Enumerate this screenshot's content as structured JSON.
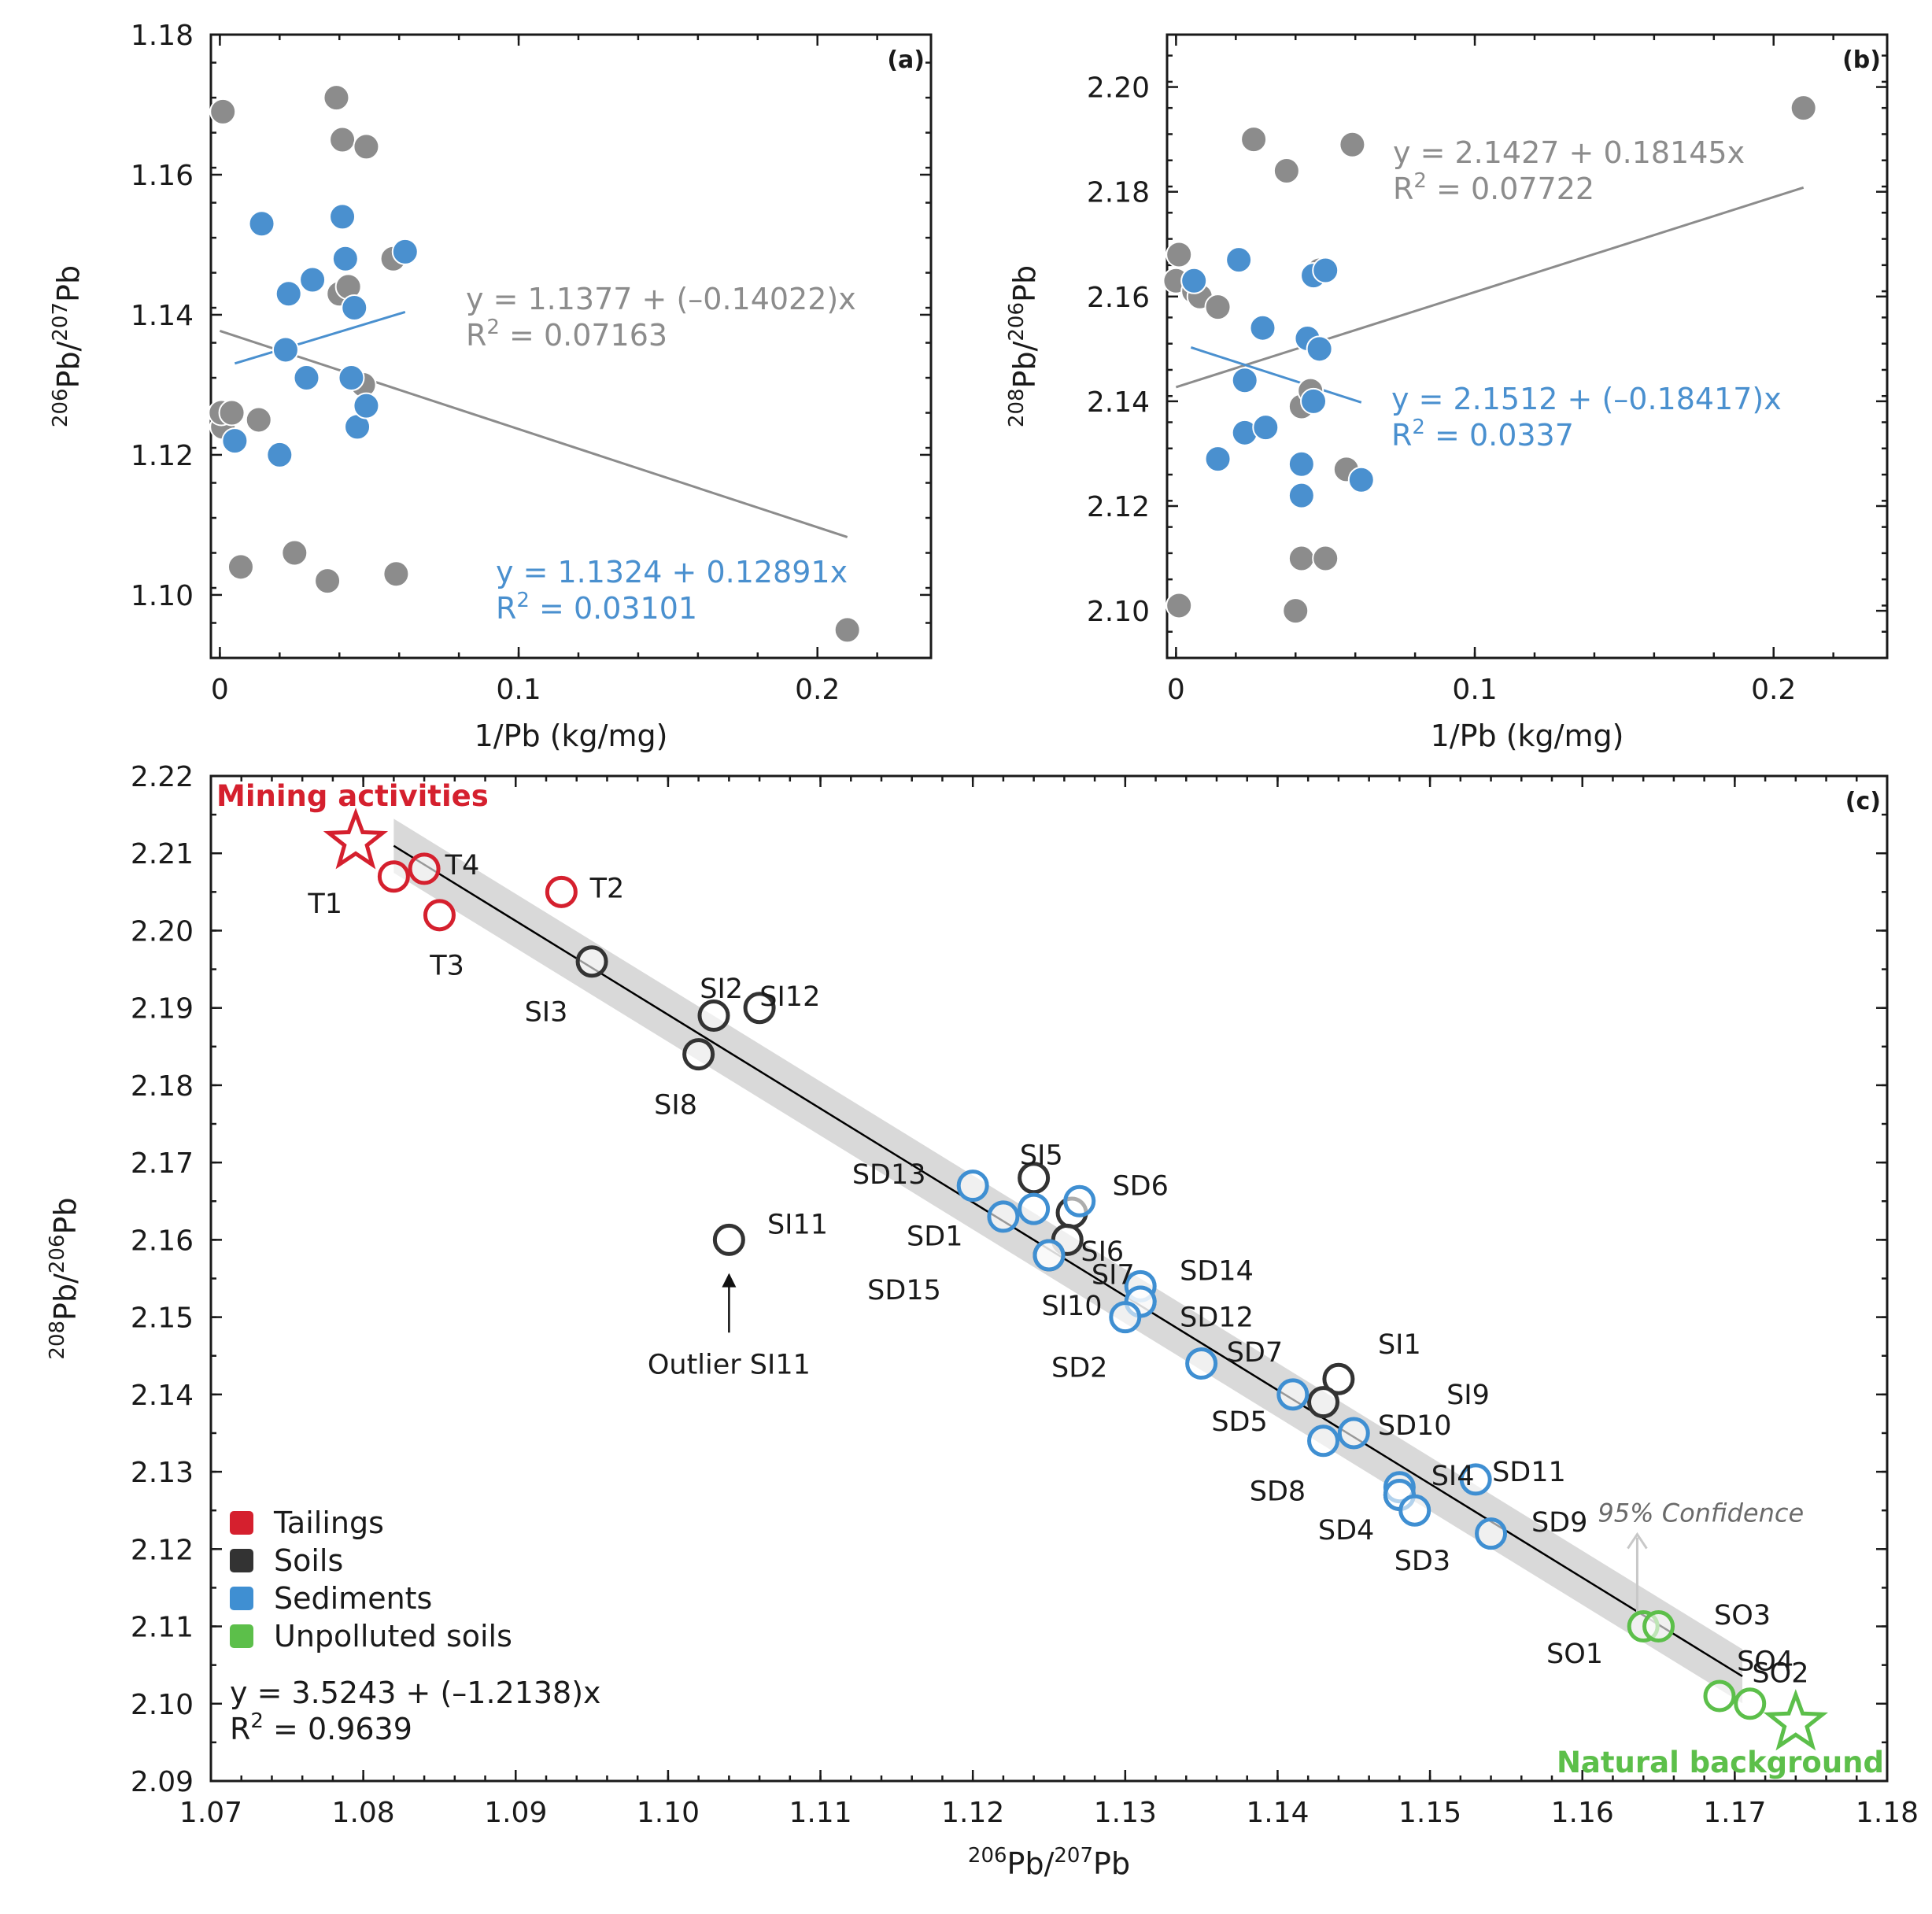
{
  "colors": {
    "gray_point": "#8c8c8c",
    "blue_point": "#4a90cf",
    "tailings": "#d5202e",
    "soils": "#333333",
    "sediments": "#3f8fd2",
    "unpolluted": "#5cbf4a",
    "band": "#d9d9d9",
    "fit_gray": "#8c8c8c",
    "fit_blue": "#4a90cf"
  },
  "chart_data": [
    {
      "id": "a",
      "type": "scatter",
      "panel_tag": "(a)",
      "xlabel": "1/Pb (kg/mg)",
      "ylabel_parts": [
        "206",
        "Pb/",
        "207",
        "Pb"
      ],
      "xlim": [
        -0.003,
        0.238
      ],
      "ylim": [
        1.091,
        1.18
      ],
      "xticks": [
        0,
        0.1,
        0.2
      ],
      "xtick_labels": [
        "0",
        "0.1",
        "0.2"
      ],
      "yticks": [
        1.1,
        1.12,
        1.14,
        1.16,
        1.18
      ],
      "ytick_labels": [
        "1.10",
        "1.12",
        "1.14",
        "1.16",
        "1.18"
      ],
      "series": [
        {
          "name": "gray",
          "color": "gray_point",
          "points": [
            [
              0.001,
              1.169
            ],
            [
              0.001,
              1.124
            ],
            [
              0.0005,
              1.126
            ],
            [
              0.004,
              1.126
            ],
            [
              0.007,
              1.104
            ],
            [
              0.013,
              1.125
            ],
            [
              0.025,
              1.106
            ],
            [
              0.036,
              1.102
            ],
            [
              0.039,
              1.171
            ],
            [
              0.041,
              1.165
            ],
            [
              0.049,
              1.164
            ],
            [
              0.04,
              1.143
            ],
            [
              0.043,
              1.144
            ],
            [
              0.048,
              1.13
            ],
            [
              0.058,
              1.148
            ],
            [
              0.059,
              1.103
            ],
            [
              0.21,
              1.095
            ]
          ]
        },
        {
          "name": "blue",
          "color": "blue_point",
          "points": [
            [
              0.014,
              1.153
            ],
            [
              0.005,
              1.122
            ],
            [
              0.02,
              1.12
            ],
            [
              0.022,
              1.135
            ],
            [
              0.023,
              1.143
            ],
            [
              0.029,
              1.131
            ],
            [
              0.031,
              1.145
            ],
            [
              0.041,
              1.154
            ],
            [
              0.042,
              1.148
            ],
            [
              0.044,
              1.131
            ],
            [
              0.045,
              1.141
            ],
            [
              0.046,
              1.124
            ],
            [
              0.049,
              1.127
            ],
            [
              0.062,
              1.149
            ]
          ]
        }
      ],
      "fits": [
        {
          "name": "gray-fit",
          "color": "fit_gray",
          "intercept": 1.1377,
          "slope": -0.14022,
          "x_range": [
            0.0,
            0.21
          ],
          "equation": "y = 1.1377 + (–0.14022)x",
          "r2_value": " = 0.07163"
        },
        {
          "name": "blue-fit",
          "color": "fit_blue",
          "intercept": 1.1324,
          "slope": 0.12891,
          "x_range": [
            0.005,
            0.062
          ],
          "equation": "y = 1.1324 + 0.12891x",
          "r2_value": " = 0.03101"
        }
      ]
    },
    {
      "id": "b",
      "type": "scatter",
      "panel_tag": "(b)",
      "xlabel": "1/Pb (kg/mg)",
      "ylabel_parts": [
        "208",
        "Pb/",
        "206",
        "Pb"
      ],
      "xlim": [
        -0.003,
        0.238
      ],
      "ylim": [
        2.091,
        2.21
      ],
      "xticks": [
        0,
        0.1,
        0.2
      ],
      "xtick_labels": [
        "0",
        "0.1",
        "0.2"
      ],
      "yticks": [
        2.1,
        2.12,
        2.14,
        2.16,
        2.18,
        2.2
      ],
      "ytick_labels": [
        "2.10",
        "2.12",
        "2.14",
        "2.16",
        "2.18",
        "2.20"
      ],
      "series": [
        {
          "name": "gray",
          "color": "gray_point",
          "points": [
            [
              0.001,
              2.168
            ],
            [
              0.0,
              2.163
            ],
            [
              0.001,
              2.101
            ],
            [
              0.006,
              2.161
            ],
            [
              0.008,
              2.16
            ],
            [
              0.014,
              2.158
            ],
            [
              0.026,
              2.19
            ],
            [
              0.037,
              2.184
            ],
            [
              0.04,
              2.1
            ],
            [
              0.042,
              2.139
            ],
            [
              0.042,
              2.11
            ],
            [
              0.045,
              2.142
            ],
            [
              0.05,
              2.11
            ],
            [
              0.048,
              2.165
            ],
            [
              0.057,
              2.127
            ],
            [
              0.059,
              2.189
            ],
            [
              0.21,
              2.196
            ]
          ]
        },
        {
          "name": "blue",
          "color": "blue_point",
          "points": [
            [
              0.006,
              2.163
            ],
            [
              0.014,
              2.129
            ],
            [
              0.021,
              2.167
            ],
            [
              0.023,
              2.144
            ],
            [
              0.023,
              2.134
            ],
            [
              0.029,
              2.154
            ],
            [
              0.03,
              2.135
            ],
            [
              0.042,
              2.128
            ],
            [
              0.042,
              2.122
            ],
            [
              0.044,
              2.152
            ],
            [
              0.046,
              2.164
            ],
            [
              0.046,
              2.14
            ],
            [
              0.048,
              2.15
            ],
            [
              0.05,
              2.165
            ],
            [
              0.062,
              2.125
            ]
          ]
        }
      ],
      "fits": [
        {
          "name": "gray-fit",
          "color": "fit_gray",
          "intercept": 2.1427,
          "slope": 0.18145,
          "x_range": [
            0.0,
            0.21
          ],
          "equation": "y = 2.1427 + 0.18145x",
          "r2_value": " = 0.07722"
        },
        {
          "name": "blue-fit",
          "color": "fit_blue",
          "intercept": 2.1512,
          "slope": -0.18417,
          "x_range": [
            0.005,
            0.062
          ],
          "equation": "y = 2.1512 + (–0.18417)x",
          "r2_value": " = 0.0337"
        }
      ]
    },
    {
      "id": "c",
      "type": "scatter",
      "panel_tag": "(c)",
      "xlabel_parts": [
        "206",
        "Pb/",
        "207",
        "Pb"
      ],
      "ylabel_parts": [
        "208",
        "Pb/",
        "206",
        "Pb"
      ],
      "xlim": [
        1.07,
        1.18
      ],
      "ylim": [
        2.09,
        2.22
      ],
      "xticks": [
        1.07,
        1.08,
        1.09,
        1.1,
        1.11,
        1.12,
        1.13,
        1.14,
        1.15,
        1.16,
        1.17,
        1.18
      ],
      "xtick_labels": [
        "1.07",
        "1.08",
        "1.09",
        "1.10",
        "1.11",
        "1.12",
        "1.13",
        "1.14",
        "1.15",
        "1.16",
        "1.17",
        "1.18"
      ],
      "yticks": [
        2.09,
        2.1,
        2.11,
        2.12,
        2.13,
        2.14,
        2.15,
        2.16,
        2.17,
        2.18,
        2.19,
        2.2,
        2.21,
        2.22
      ],
      "ytick_labels": [
        "2.09",
        "2.10",
        "2.11",
        "2.12",
        "2.13",
        "2.14",
        "2.15",
        "2.16",
        "2.17",
        "2.18",
        "2.19",
        "2.20",
        "2.21",
        "2.22"
      ],
      "fit": {
        "intercept": 3.5243,
        "slope": -1.2138,
        "x_range": [
          1.082,
          1.1705
        ],
        "band_half_width": 0.0035,
        "equation": "y = 3.5243 + (–1.2138)x",
        "r2_value": " = 0.9639"
      },
      "series": [
        {
          "name": "Tailings",
          "color": "tailings",
          "points": [
            {
              "label": "T1",
              "x": 1.082,
              "y": 2.207,
              "lx": -0.0045,
              "ly": -0.0035
            },
            {
              "label": "T4",
              "x": 1.084,
              "y": 2.208,
              "lx": 0.0025,
              "ly": 0.0005
            },
            {
              "label": "T3",
              "x": 1.085,
              "y": 2.202,
              "lx": 0.0005,
              "ly": -0.0065
            },
            {
              "label": "T2",
              "x": 1.093,
              "y": 2.205,
              "lx": 0.003,
              "ly": 0.0005
            }
          ]
        },
        {
          "name": "Soils",
          "color": "soils",
          "points": [
            {
              "label": "SI3",
              "x": 1.095,
              "y": 2.196,
              "lx": -0.003,
              "ly": -0.0065
            },
            {
              "label": "SI2",
              "x": 1.103,
              "y": 2.189,
              "lx": 0.0005,
              "ly": 0.0035
            },
            {
              "label": "SI12",
              "x": 1.106,
              "y": 2.19,
              "lx": 0.002,
              "ly": 0.0015
            },
            {
              "label": "SI8",
              "x": 1.102,
              "y": 2.184,
              "lx": -0.0015,
              "ly": -0.0065
            },
            {
              "label": "SI5",
              "x": 1.124,
              "y": 2.168,
              "lx": 0.0005,
              "ly": 0.003
            },
            {
              "label": "SI6",
              "x": 1.1265,
              "y": 2.1635,
              "lx": 0.002,
              "ly": -0.005
            },
            {
              "label": "SI7",
              "x": 1.1262,
              "y": 2.16,
              "lx": 0.003,
              "ly": -0.0045
            },
            {
              "label": "SI10",
              "x": 1.125,
              "y": 2.158,
              "lx": 0.0015,
              "ly": -0.0065
            },
            {
              "label": "SI11",
              "x": 1.104,
              "y": 2.16,
              "lx": 0.0045,
              "ly": 0.002
            },
            {
              "label": "SI1",
              "x": 1.144,
              "y": 2.142,
              "lx": 0.004,
              "ly": 0.0045
            },
            {
              "label": "SI9",
              "x": 1.143,
              "y": 2.139,
              "lx": 0.0095,
              "ly": 0.001
            },
            {
              "label": "SI4",
              "x": 1.148,
              "y": 2.127,
              "lx": 0.0035,
              "ly": 0.0025
            }
          ]
        },
        {
          "name": "Sediments",
          "color": "sediments",
          "points": [
            {
              "label": "SD13",
              "x": 1.12,
              "y": 2.167,
              "lx": -0.0055,
              "ly": 0.0015
            },
            {
              "label": "SD1",
              "x": 1.122,
              "y": 2.163,
              "lx": -0.0045,
              "ly": -0.0025
            },
            {
              "label": "",
              "x": 1.124,
              "y": 2.164,
              "lx": 0,
              "ly": 0
            },
            {
              "label": "SD6",
              "x": 1.127,
              "y": 2.165,
              "lx": 0.004,
              "ly": 0.002
            },
            {
              "label": "SD15",
              "x": 1.125,
              "y": 2.158,
              "lx": -0.0095,
              "ly": -0.0045
            },
            {
              "label": "SD14",
              "x": 1.131,
              "y": 2.154,
              "lx": 0.005,
              "ly": 0.002
            },
            {
              "label": "",
              "x": 1.131,
              "y": 2.152,
              "lx": 0,
              "ly": 0
            },
            {
              "label": "SD12",
              "x": 1.131,
              "y": 2.152,
              "lx": 0.005,
              "ly": -0.002
            },
            {
              "label": "SD2",
              "x": 1.13,
              "y": 2.15,
              "lx": -0.003,
              "ly": -0.0065
            },
            {
              "label": "SD7",
              "x": 1.135,
              "y": 2.144,
              "lx": 0.0035,
              "ly": 0.0015
            },
            {
              "label": "SD5",
              "x": 1.141,
              "y": 2.14,
              "lx": -0.0035,
              "ly": -0.0035
            },
            {
              "label": "SD10",
              "x": 1.145,
              "y": 2.135,
              "lx": 0.004,
              "ly": 0.001
            },
            {
              "label": "SD8",
              "x": 1.143,
              "y": 2.134,
              "lx": -0.003,
              "ly": -0.0065
            },
            {
              "label": "",
              "x": 1.148,
              "y": 2.128,
              "lx": 0,
              "ly": 0
            },
            {
              "label": "SD4",
              "x": 1.148,
              "y": 2.127,
              "lx": -0.0035,
              "ly": -0.0045
            },
            {
              "label": "SD3",
              "x": 1.149,
              "y": 2.125,
              "lx": 0.0005,
              "ly": -0.0065
            },
            {
              "label": "SD11",
              "x": 1.153,
              "y": 2.129,
              "lx": 0.0035,
              "ly": 0.001
            },
            {
              "label": "SD9",
              "x": 1.154,
              "y": 2.122,
              "lx": 0.0045,
              "ly": 0.0015
            }
          ]
        },
        {
          "name": "Unpolluted soils",
          "color": "unpolluted",
          "points": [
            {
              "label": "SO1",
              "x": 1.164,
              "y": 2.11,
              "lx": -0.0045,
              "ly": -0.0035
            },
            {
              "label": "SO3",
              "x": 1.165,
              "y": 2.11,
              "lx": 0.0055,
              "ly": 0.0015
            },
            {
              "label": "SO4",
              "x": 1.169,
              "y": 2.101,
              "lx": 0.003,
              "ly": 0.0045
            },
            {
              "label": "SO2",
              "x": 1.171,
              "y": 2.1,
              "lx": 0.002,
              "ly": 0.004
            }
          ]
        }
      ],
      "sources": [
        {
          "name": "mining",
          "label": "Mining activities",
          "x": 1.0795,
          "y": 2.2115,
          "color": "tailings"
        },
        {
          "name": "natural",
          "label": "Natural background",
          "x": 1.174,
          "y": 2.0975,
          "color": "unpolluted"
        }
      ],
      "annotations": {
        "outlier": "Outlier SI11",
        "outlier_x": 1.104,
        "outlier_y_from": 2.148,
        "outlier_y_to": 2.1555,
        "confidence": "95% Confidence",
        "conf_x": 1.1636,
        "conf_y_from": 2.1115,
        "conf_y_to": 2.1215
      },
      "legend": {
        "position": "bottom-left",
        "items": [
          "Tailings",
          "Soils",
          "Sediments",
          "Unpolluted soils"
        ]
      }
    }
  ]
}
